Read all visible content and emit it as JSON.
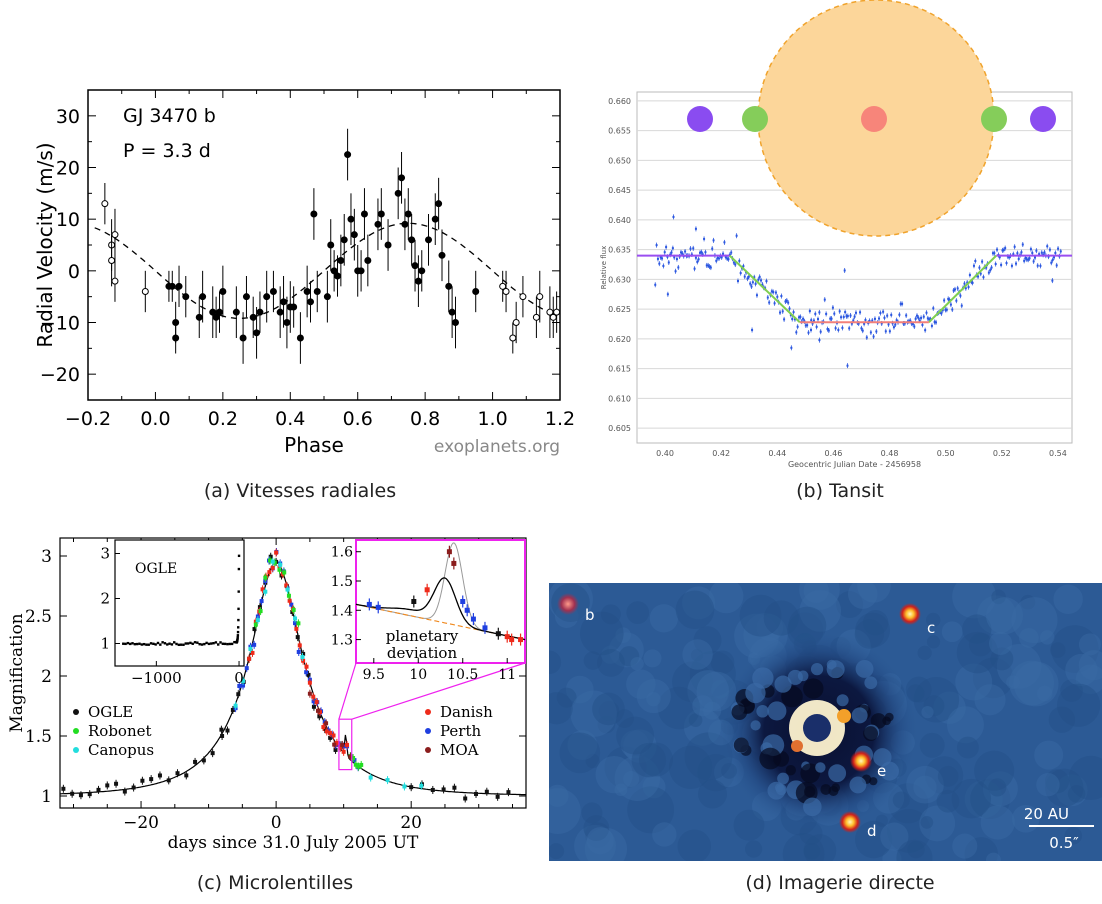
{
  "captions": {
    "a": "(a) Vitesses radiales",
    "b": "(b) Tansit",
    "c": "(c) Microlentilles",
    "d": "(d) Imagerie directe"
  },
  "chart_data": [
    {
      "id": "a",
      "type": "scatter",
      "annotation_lines": [
        "GJ 3470 b",
        "P = 3.3 d"
      ],
      "watermark": "exoplanets.org",
      "xlabel": "Phase",
      "ylabel": "Radial Velocity  (m/s)",
      "xlim": [
        -0.2,
        1.2
      ],
      "ylim": [
        -25,
        35
      ],
      "xticks": [
        -0.2,
        0.0,
        0.2,
        0.4,
        0.6,
        0.8,
        1.0,
        1.2
      ],
      "xtick_labels": [
        "−0.2",
        "0.0",
        "0.2",
        "0.4",
        "0.6",
        "0.8",
        "1.0",
        "1.2"
      ],
      "yticks": [
        -20,
        -10,
        0,
        10,
        20,
        30
      ],
      "ytick_labels": [
        "−20",
        "−10",
        "0",
        "10",
        "20",
        "30"
      ],
      "model_curve": {
        "style": "dashed",
        "amplitude": 9.2,
        "phase_of_max": 0.75
      },
      "series": [
        {
          "style": "filled",
          "points": [
            [
              0.04,
              -3,
              3
            ],
            [
              0.05,
              -3,
              3
            ],
            [
              0.06,
              -10,
              4
            ],
            [
              0.06,
              -13,
              3
            ],
            [
              0.07,
              -3,
              4
            ],
            [
              0.09,
              -5,
              4
            ],
            [
              0.13,
              -9,
              4
            ],
            [
              0.14,
              -5,
              5
            ],
            [
              0.17,
              -8,
              5
            ],
            [
              0.18,
              -9,
              4
            ],
            [
              0.19,
              -8,
              4
            ],
            [
              0.2,
              -4,
              5
            ],
            [
              0.24,
              -8,
              5
            ],
            [
              0.26,
              -13,
              5
            ],
            [
              0.27,
              -5,
              4
            ],
            [
              0.29,
              -9,
              4
            ],
            [
              0.3,
              -12,
              5
            ],
            [
              0.31,
              -8,
              4
            ],
            [
              0.33,
              -5,
              5
            ],
            [
              0.35,
              -4,
              4
            ],
            [
              0.37,
              -8,
              5
            ],
            [
              0.38,
              -6,
              5
            ],
            [
              0.39,
              -10,
              5
            ],
            [
              0.4,
              -7,
              5
            ],
            [
              0.41,
              -7,
              4
            ],
            [
              0.43,
              -13,
              5
            ],
            [
              0.45,
              -4,
              5
            ],
            [
              0.46,
              -6,
              4
            ],
            [
              0.47,
              11,
              5
            ],
            [
              0.48,
              -4,
              4
            ],
            [
              0.51,
              -5,
              5
            ],
            [
              0.52,
              5,
              5
            ],
            [
              0.53,
              0,
              4
            ],
            [
              0.54,
              -1,
              4
            ],
            [
              0.55,
              2,
              5
            ],
            [
              0.56,
              6,
              5
            ],
            [
              0.57,
              22.5,
              5
            ],
            [
              0.58,
              10,
              5
            ],
            [
              0.59,
              7,
              5
            ],
            [
              0.6,
              0,
              5
            ],
            [
              0.61,
              0,
              4
            ],
            [
              0.62,
              11,
              5
            ],
            [
              0.63,
              2,
              5
            ],
            [
              0.66,
              9,
              5
            ],
            [
              0.67,
              11,
              5
            ],
            [
              0.69,
              5,
              5
            ],
            [
              0.72,
              15,
              5
            ],
            [
              0.73,
              18,
              5
            ],
            [
              0.74,
              9,
              5
            ],
            [
              0.75,
              11,
              5
            ],
            [
              0.76,
              6,
              5
            ],
            [
              0.77,
              1,
              5
            ],
            [
              0.78,
              -2,
              5
            ],
            [
              0.79,
              0,
              4
            ],
            [
              0.81,
              6,
              5
            ],
            [
              0.83,
              10,
              5
            ],
            [
              0.84,
              13,
              5
            ],
            [
              0.85,
              3,
              5
            ],
            [
              0.87,
              -3,
              5
            ],
            [
              0.88,
              -8,
              5
            ],
            [
              0.89,
              -10,
              5
            ],
            [
              0.95,
              -4,
              4
            ]
          ]
        },
        {
          "style": "open",
          "points": [
            [
              -0.15,
              13,
              4
            ],
            [
              -0.13,
              5,
              5
            ],
            [
              -0.13,
              2,
              5
            ],
            [
              -0.12,
              -2,
              4
            ],
            [
              -0.12,
              7,
              5
            ],
            [
              -0.03,
              -4,
              4
            ],
            [
              1.03,
              -3,
              3
            ],
            [
              1.04,
              -4,
              4
            ],
            [
              1.06,
              -13,
              3
            ],
            [
              1.07,
              -10,
              4
            ],
            [
              1.09,
              -5,
              4
            ],
            [
              1.13,
              -9,
              4
            ],
            [
              1.14,
              -5,
              5
            ],
            [
              1.17,
              -8,
              5
            ],
            [
              1.18,
              -9,
              4
            ],
            [
              1.19,
              -8,
              4
            ]
          ]
        }
      ]
    },
    {
      "id": "b",
      "type": "scatter",
      "xlabel": "Geocentric Julian Date - 2456958",
      "ylabel": "Relative flux",
      "xlim": [
        0.39,
        0.545
      ],
      "ylim": [
        0.6025,
        0.6615
      ],
      "xticks": [
        0.4,
        0.42,
        0.44,
        0.46,
        0.48,
        0.5,
        0.52,
        0.54
      ],
      "xtick_labels": [
        "0.40",
        "0.42",
        "0.44",
        "0.46",
        "0.48",
        "0.50",
        "0.52",
        "0.54"
      ],
      "yticks": [
        0.605,
        0.61,
        0.615,
        0.62,
        0.625,
        0.63,
        0.635,
        0.64,
        0.645,
        0.65,
        0.655,
        0.66
      ],
      "ytick_labels": [
        "0.605",
        "0.610",
        "0.615",
        "0.620",
        "0.625",
        "0.630",
        "0.635",
        "0.640",
        "0.645",
        "0.650",
        "0.655",
        "0.660"
      ],
      "grid": true,
      "model": {
        "baseline": 0.634,
        "depth_level": 0.6228,
        "ingress": [
          0.423,
          0.448
        ],
        "egress": [
          0.494,
          0.518
        ]
      },
      "outliers": [
        [
          0.403,
          0.6405
        ],
        [
          0.411,
          0.6385
        ],
        [
          0.401,
          0.6275
        ],
        [
          0.465,
          0.6155
        ],
        [
          0.464,
          0.6315
        ],
        [
          0.445,
          0.6185
        ],
        [
          0.538,
          0.6298
        ],
        [
          0.431,
          0.6215
        ],
        [
          0.455,
          0.6198
        ],
        [
          0.452,
          0.6215
        ]
      ],
      "scatter_sigma": 0.0012,
      "n_points": 300,
      "schematic": {
        "star_color": "#fcd69a",
        "star_edge": "#f0a32c",
        "positions": [
          "ingress-out",
          "ingress-contact",
          "mid-transit",
          "egress-contact",
          "egress-out"
        ],
        "planet_colors": [
          "#8a4cf0",
          "#85cd5a",
          "#f7857a",
          "#85cd5a",
          "#8a4cf0"
        ]
      }
    },
    {
      "id": "c",
      "type": "line",
      "xlabel": "days since 31.0 July 2005 UT",
      "ylabel": "Magnification",
      "xlim": [
        -32,
        37
      ],
      "ylim": [
        0.9,
        3.15
      ],
      "xticks": [
        -20,
        0,
        20
      ],
      "xtick_labels": [
        "−20",
        "0",
        "20"
      ],
      "yticks": [
        1,
        1.5,
        2,
        2.5,
        3
      ],
      "ytick_labels": [
        "1",
        "1.5",
        "2",
        "2.5",
        "3"
      ],
      "model": {
        "t0": 0.0,
        "u0": 0.355,
        "tE": 11.0
      },
      "legend_left": [
        {
          "name": "OGLE",
          "color": "#111111"
        },
        {
          "name": "Robonet",
          "color": "#22dd22"
        },
        {
          "name": "Canopus",
          "color": "#22dddd"
        }
      ],
      "legend_right": [
        {
          "name": "Danish",
          "color": "#ee2a1a"
        },
        {
          "name": "Perth",
          "color": "#1f3fe0"
        },
        {
          "name": "MOA",
          "color": "#8b1d1d"
        }
      ],
      "inset_left": {
        "label": "OGLE",
        "xlim": [
          -1500,
          60
        ],
        "ylim": [
          0.5,
          3.3
        ],
        "xticks": [
          -1000,
          0
        ],
        "xtick_labels": [
          "−1000",
          "0"
        ],
        "yticks": [
          1,
          2,
          3
        ],
        "ytick_labels": [
          "1",
          "2",
          "3"
        ]
      },
      "inset_right": {
        "annotation_lines": [
          "planetary",
          "deviation"
        ],
        "xlim": [
          9.3,
          11.2
        ],
        "ylim": [
          1.22,
          1.64
        ],
        "xticks": [
          9.5,
          10,
          10.5,
          11
        ],
        "xtick_labels": [
          "9.5",
          "10",
          "10.5",
          "11"
        ],
        "yticks": [
          1.3,
          1.4,
          1.5,
          1.6
        ],
        "ytick_labels": [
          "1.3",
          "1.4",
          "1.5",
          "1.6"
        ]
      },
      "zoom_box": {
        "x": [
          9.3,
          11.2
        ],
        "y": [
          1.22,
          1.64
        ],
        "color": "#ee22ee"
      }
    },
    {
      "id": "d",
      "type": "heatmap",
      "planet_labels": [
        "b",
        "c",
        "e",
        "d"
      ],
      "scale_bar_top": "20 AU",
      "scale_bar_bottom": "0.5″"
    }
  ]
}
